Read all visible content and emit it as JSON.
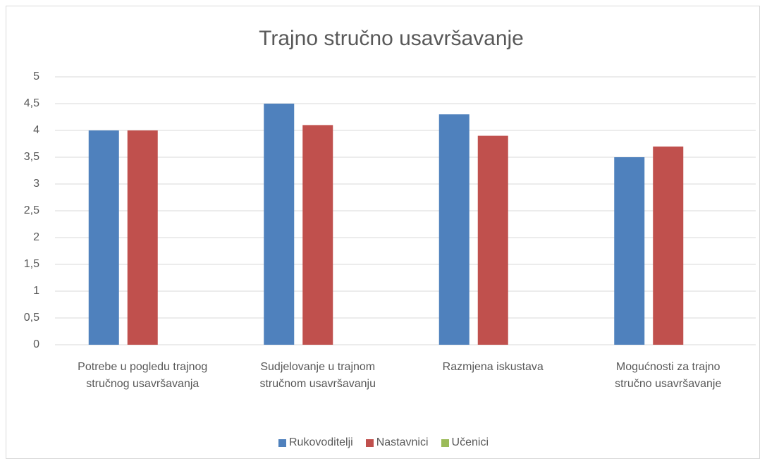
{
  "chart_data": {
    "type": "bar",
    "title": "Trajno stručno usavršavanje",
    "categories": [
      "Potrebe u pogledu trajnog stručnog usavršavanja",
      "Sudjelovanje u trajnom stručnom usavršavanju",
      "Razmjena iskustava",
      "Mogućnosti za trajno stručno usavršavanje"
    ],
    "series": [
      {
        "name": "Rukovoditelji",
        "color": "#4f81bd",
        "values": [
          4,
          4.5,
          4.3,
          3.5
        ]
      },
      {
        "name": "Nastavnici",
        "color": "#c0504d",
        "values": [
          4,
          4.1,
          3.9,
          3.7
        ]
      },
      {
        "name": "Učenici",
        "color": "#9bbb59",
        "values": [
          null,
          null,
          null,
          null
        ]
      }
    ],
    "ylim": [
      0,
      5
    ],
    "yticks": [
      0,
      {
        "value": 0.5,
        "label": "0,5"
      },
      1,
      {
        "value": 1.5,
        "label": "1,5"
      },
      2,
      {
        "value": 2.5,
        "label": "2,5"
      },
      3,
      {
        "value": 3.5,
        "label": "3,5"
      },
      4,
      {
        "value": 4.5,
        "label": "4,5"
      },
      5
    ],
    "grid": true,
    "legend": "bottom"
  }
}
